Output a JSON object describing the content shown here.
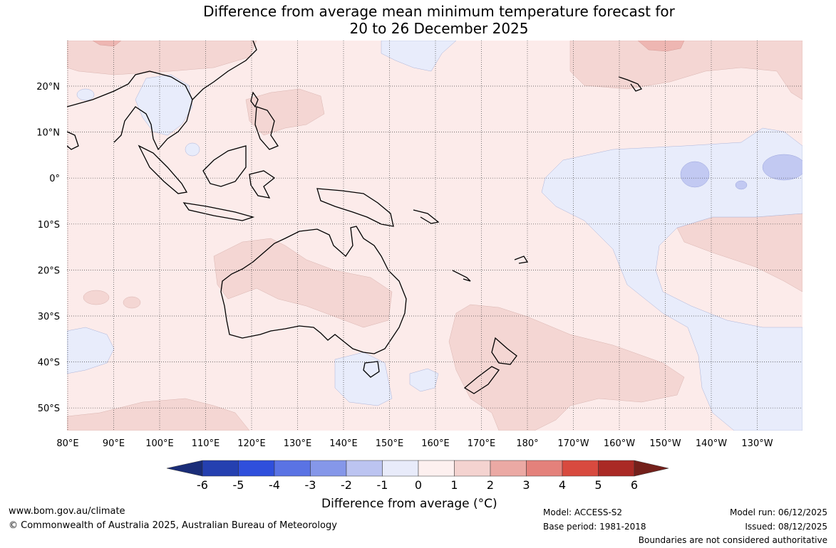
{
  "title": {
    "line1": "Difference from average mean minimum temperature forecast for",
    "line2": "20 to 26 December 2025"
  },
  "map": {
    "lat_labels": [
      "20°N",
      "10°N",
      "0°",
      "10°S",
      "20°S",
      "30°S",
      "40°S",
      "50°S"
    ],
    "lon_labels": [
      "80°E",
      "90°E",
      "100°E",
      "110°E",
      "120°E",
      "130°E",
      "140°E",
      "150°E",
      "160°E",
      "170°E",
      "180°",
      "170°W",
      "160°W",
      "150°W",
      "140°W",
      "130°W"
    ],
    "colors": {
      "background_0_to_1": "#fcebea",
      "anom_1_to_2": "#f4d6d3",
      "anom_2_to_3": "#eeb6b2",
      "anom_neg_1_to_0": "#e8ecfb",
      "anom_neg_2_to_neg_1": "#c2c9f2"
    }
  },
  "colorbar": {
    "ticks": [
      "-6",
      "-5",
      "-4",
      "-3",
      "-2",
      "-1",
      "0",
      "1",
      "2",
      "3",
      "4",
      "5",
      "6"
    ],
    "colors": [
      "#1a2d78",
      "#2540b0",
      "#2f4fdc",
      "#5a73e4",
      "#8597e9",
      "#bcc4f1",
      "#e8ebfa",
      "#fdf0ef",
      "#f4d3d0",
      "#eba9a4",
      "#e4817b",
      "#d84a3f",
      "#aa2a25",
      "#74201b"
    ],
    "label": "Difference from average (°C)"
  },
  "footer": {
    "website": "www.bom.gov.au/climate",
    "copyright": "© Commonwealth of Australia 2025, Australian Bureau of Meteorology",
    "model": "Model: ACCESS-S2",
    "base_period": "Base period: 1981-2018",
    "model_run": "Model run: 06/12/2025",
    "issued": "Issued: 08/12/2025",
    "disclaimer": "Boundaries are not considered authoritative"
  }
}
